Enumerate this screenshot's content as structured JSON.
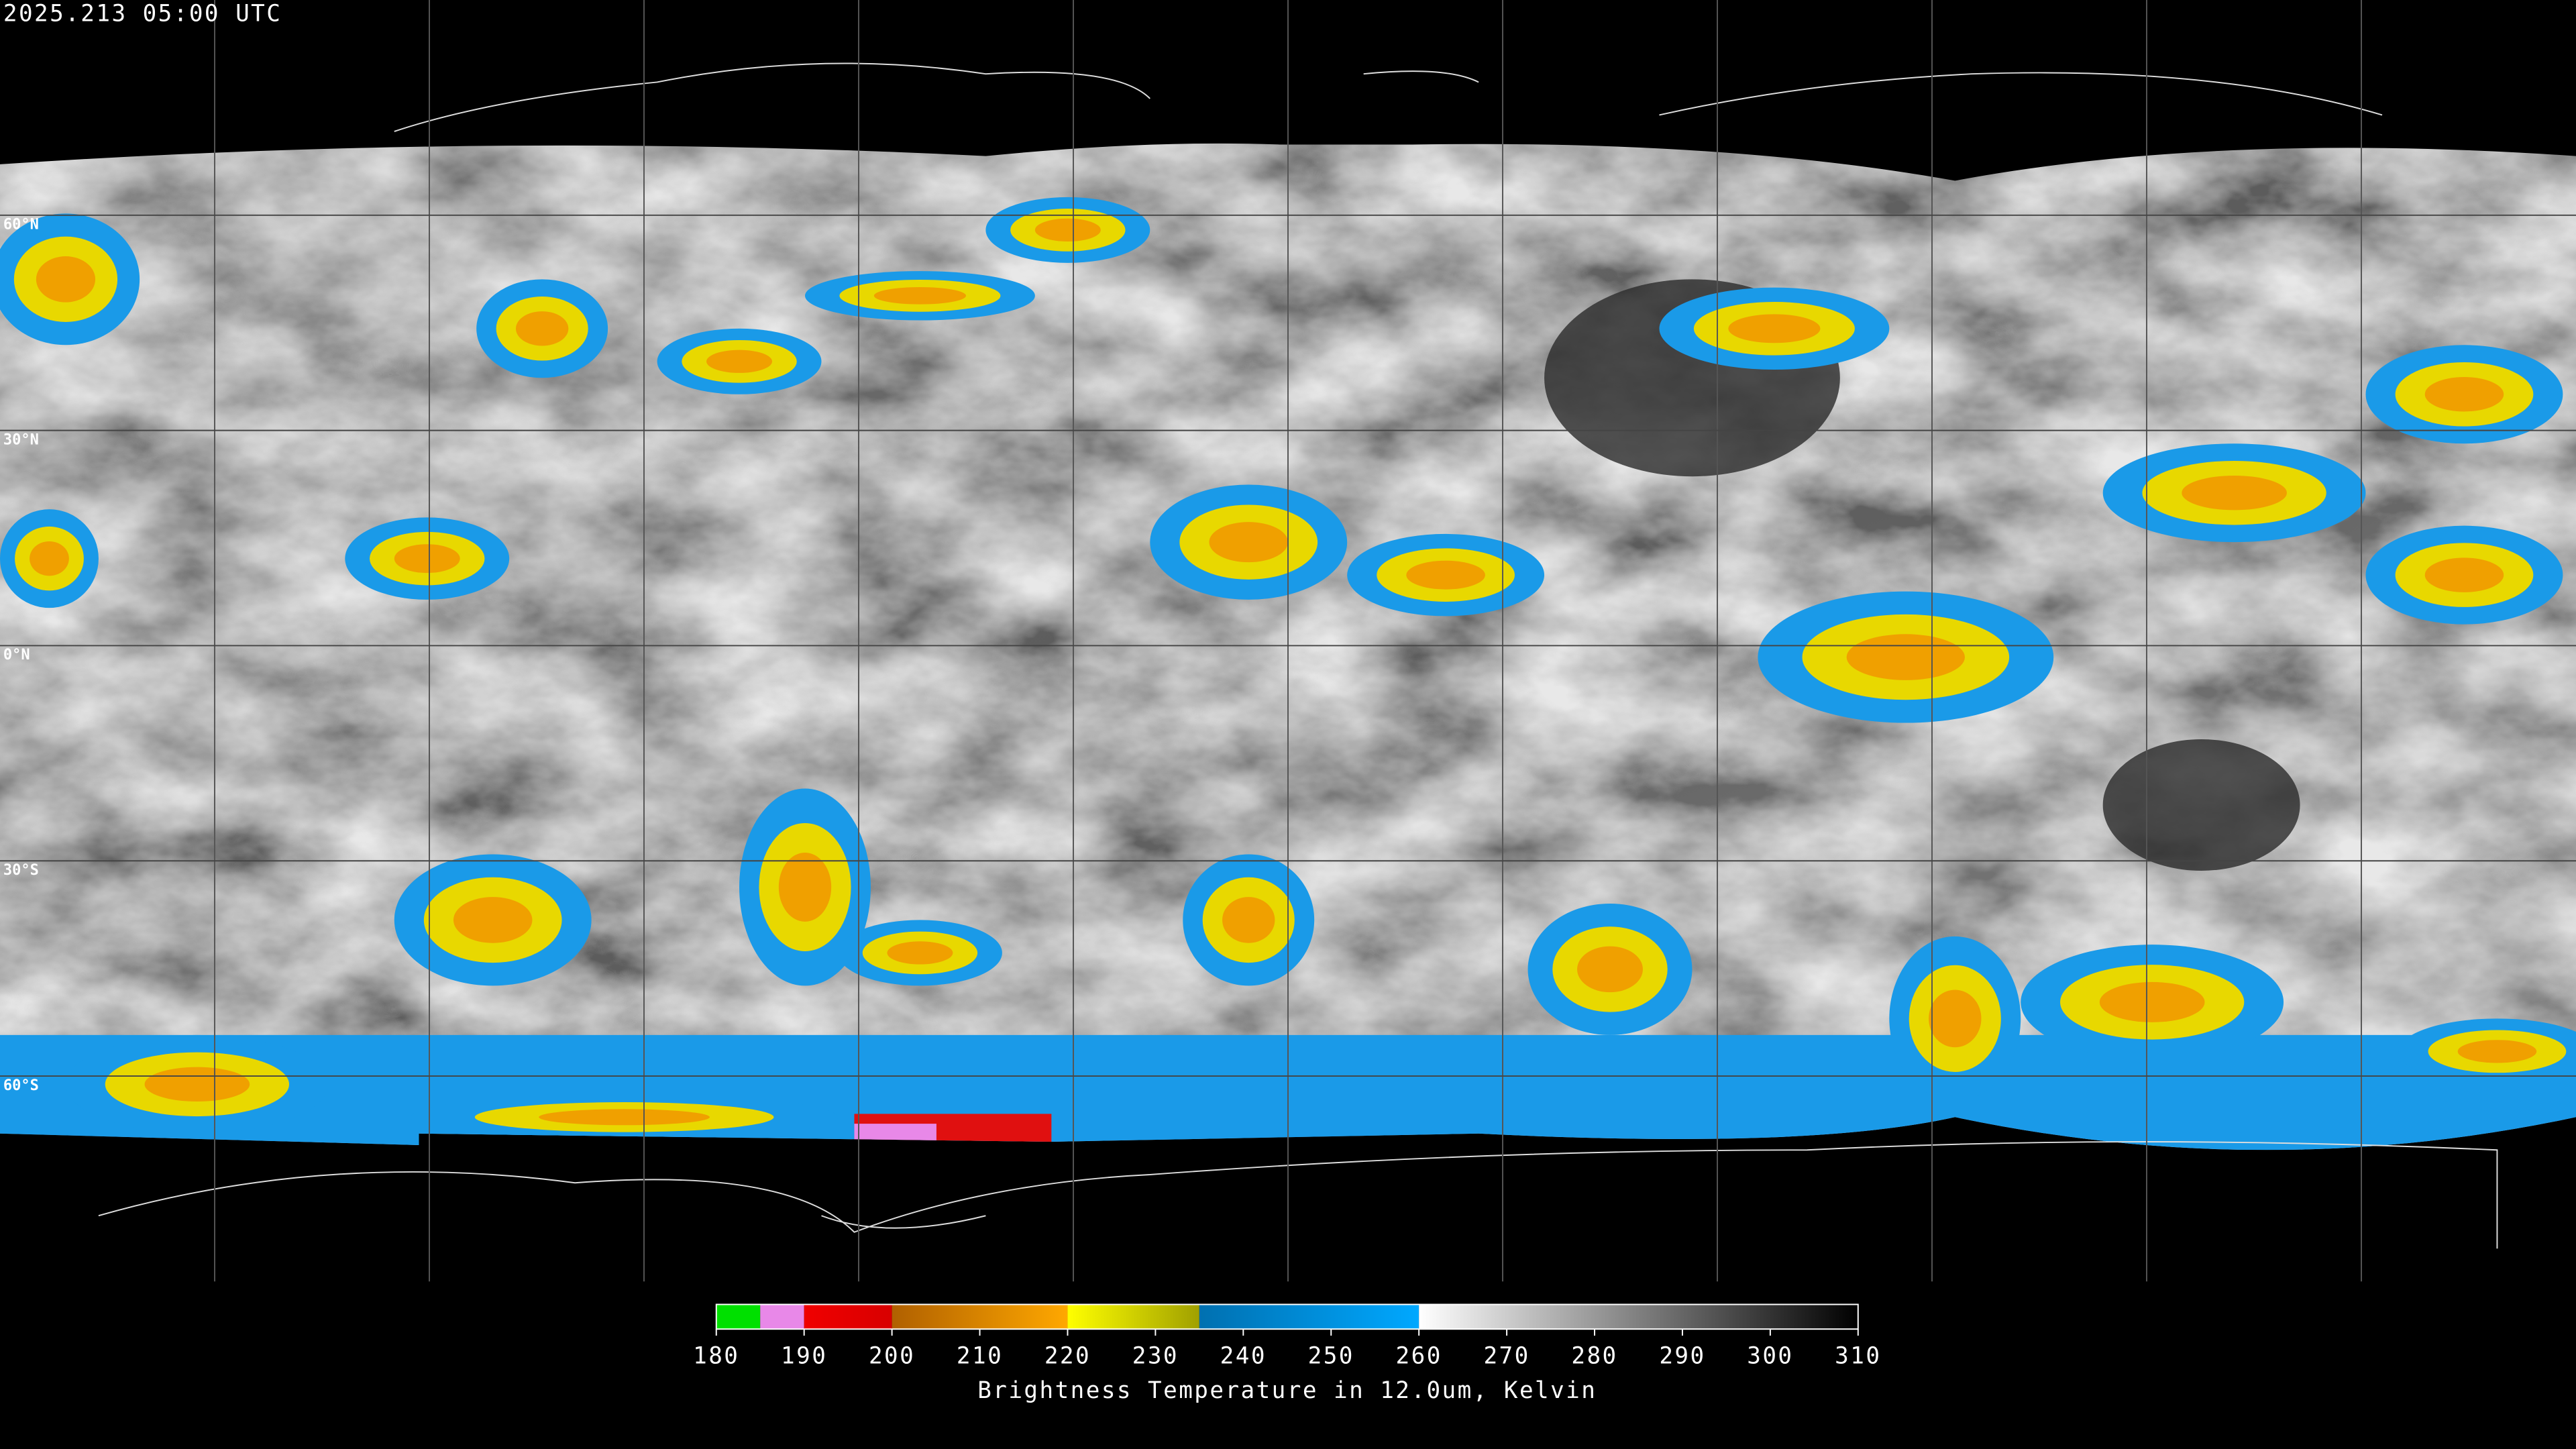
{
  "title": "2025.213 05:00 UTC",
  "lat_lines": [
    {
      "value": 60,
      "label": "60°N"
    },
    {
      "value": 30,
      "label": "30°N"
    },
    {
      "value": 0,
      "label": "0°N"
    },
    {
      "value": -30,
      "label": "30°S"
    },
    {
      "value": -60,
      "label": "60°S"
    }
  ],
  "colorbar": {
    "label": "Brightness Temperature in 12.0um, Kelvin",
    "range": [
      180,
      310
    ],
    "ticks": [
      180,
      190,
      200,
      210,
      220,
      230,
      240,
      250,
      260,
      270,
      280,
      290,
      300,
      310
    ],
    "segments": [
      {
        "from": 180,
        "to": 185,
        "colors": [
          "#00e000",
          "#00e000"
        ]
      },
      {
        "from": 185,
        "to": 190,
        "colors": [
          "#e888e8",
          "#e888e8"
        ]
      },
      {
        "from": 190,
        "to": 200,
        "colors": [
          "#f00000",
          "#d80000"
        ]
      },
      {
        "from": 200,
        "to": 220,
        "colors": [
          "#b06000",
          "#ffa800"
        ]
      },
      {
        "from": 220,
        "to": 235,
        "colors": [
          "#ffff00",
          "#a0a000"
        ]
      },
      {
        "from": 235,
        "to": 260,
        "colors": [
          "#0070b0",
          "#00a8ff"
        ]
      },
      {
        "from": 260,
        "to": 310,
        "colors": [
          "#ffffff",
          "#000000"
        ]
      }
    ]
  }
}
